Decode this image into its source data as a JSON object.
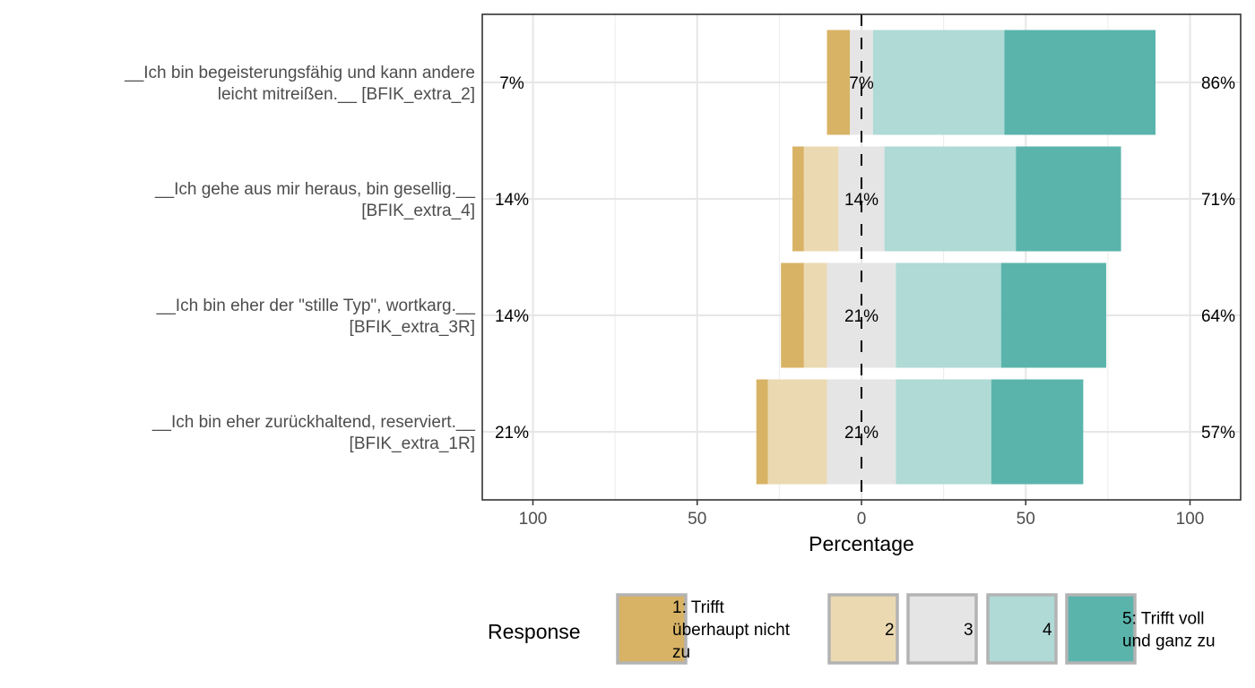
{
  "chart_data": {
    "type": "bar",
    "subtype": "diverging-stacked-likert",
    "title": "",
    "xlabel": "Percentage",
    "ylabel": "",
    "xlim": [
      -100,
      100
    ],
    "x_ticks": [
      -100,
      -50,
      0,
      50,
      100
    ],
    "x_tick_labels": [
      "100",
      "50",
      "0",
      "50",
      "100"
    ],
    "grid": true,
    "legend_position": "bottom",
    "legend_title": "Response",
    "levels": [
      {
        "label": "1: Trifft überhaupt nicht zu",
        "label_lines": [
          "1: Trifft",
          "überhaupt nicht",
          "zu"
        ],
        "color": "#D8B365"
      },
      {
        "label": "2",
        "label_lines": [
          "2"
        ],
        "color": "#EBD9B2"
      },
      {
        "label": "3",
        "label_lines": [
          "3"
        ],
        "color": "#E5E5E5"
      },
      {
        "label": "4",
        "label_lines": [
          "4"
        ],
        "color": "#AFDAD6"
      },
      {
        "label": "5: Trifft voll und ganz zu",
        "label_lines": [
          "5: Trifft voll",
          "und ganz zu"
        ],
        "color": "#5AB4AC"
      }
    ],
    "items": [
      {
        "label_lines": [
          "__Ich bin begeisterungsfähig und kann andere",
          "leicht mitreißen.__ [BFIK_extra_2]"
        ],
        "values": [
          7,
          0,
          7,
          40,
          46
        ],
        "left_label": "7%",
        "center_label": "7%",
        "right_label": "86%"
      },
      {
        "label_lines": [
          "__Ich gehe aus mir heraus, bin gesellig.__",
          "[BFIK_extra_4]"
        ],
        "values": [
          3.5,
          10.5,
          14,
          40,
          32
        ],
        "left_label": "14%",
        "center_label": "14%",
        "right_label": "71%"
      },
      {
        "label_lines": [
          "__Ich bin eher der \"stille Typ\", wortkarg.__",
          "[BFIK_extra_3R]"
        ],
        "values": [
          7,
          7,
          21,
          32,
          32
        ],
        "left_label": "14%",
        "center_label": "21%",
        "right_label": "64%"
      },
      {
        "label_lines": [
          "__Ich bin eher zurückhaltend, reserviert.__",
          "[BFIK_extra_1R]"
        ],
        "values": [
          3.5,
          18,
          21,
          29,
          28
        ],
        "left_label": "21%",
        "center_label": "21%",
        "right_label": "57%"
      }
    ]
  }
}
